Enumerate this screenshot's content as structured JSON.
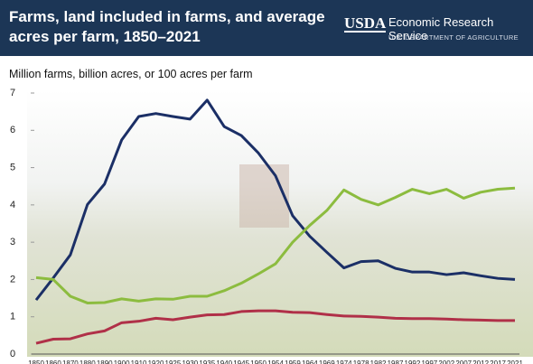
{
  "header": {
    "title": "Farms, land included in farms, and average acres per farm, 1850–2021",
    "logo": "USDA",
    "agency": "Economic Research Service",
    "department": "U.S. DEPARTMENT OF AGRICULTURE"
  },
  "chart_data": {
    "type": "line",
    "ylabel": "Million farms, billion acres, or 100 acres per farm",
    "categories": [
      "1850",
      "1860",
      "1870",
      "1880",
      "1890",
      "1900",
      "1910",
      "1920",
      "1925",
      "1930",
      "1935",
      "1940",
      "1945",
      "1950",
      "1954",
      "1959",
      "1964",
      "1969",
      "1974",
      "1978",
      "1982",
      "1987",
      "1992",
      "1997",
      "2002",
      "2007",
      "2012",
      "2017",
      "2021"
    ],
    "series": [
      {
        "color": "#1b2f66",
        "values": [
          1.45,
          2.04,
          2.66,
          4.01,
          4.56,
          5.74,
          6.37,
          6.45,
          6.37,
          6.3,
          6.81,
          6.1,
          5.86,
          5.39,
          4.78,
          3.71,
          3.16,
          2.73,
          2.31,
          2.48,
          2.5,
          2.3,
          2.2,
          2.2,
          2.13,
          2.18,
          2.1,
          2.03,
          2.0
        ]
      },
      {
        "color": "#8cbc3f",
        "values": [
          2.05,
          2.0,
          1.55,
          1.37,
          1.38,
          1.48,
          1.42,
          1.48,
          1.47,
          1.55,
          1.55,
          1.7,
          1.9,
          2.15,
          2.42,
          3.0,
          3.45,
          3.85,
          4.4,
          4.15,
          4.0,
          4.2,
          4.42,
          4.3,
          4.42,
          4.18,
          4.34,
          4.42,
          4.45
        ]
      },
      {
        "color": "#b03048",
        "values": [
          0.29,
          0.4,
          0.41,
          0.54,
          0.62,
          0.84,
          0.88,
          0.96,
          0.92,
          0.99,
          1.05,
          1.06,
          1.14,
          1.16,
          1.16,
          1.12,
          1.11,
          1.06,
          1.02,
          1.01,
          0.99,
          0.96,
          0.95,
          0.95,
          0.94,
          0.92,
          0.91,
          0.9,
          0.9
        ]
      }
    ],
    "ylim": [
      0,
      7
    ],
    "yticks": [
      0,
      1,
      2,
      3,
      4,
      5,
      6,
      7
    ]
  }
}
